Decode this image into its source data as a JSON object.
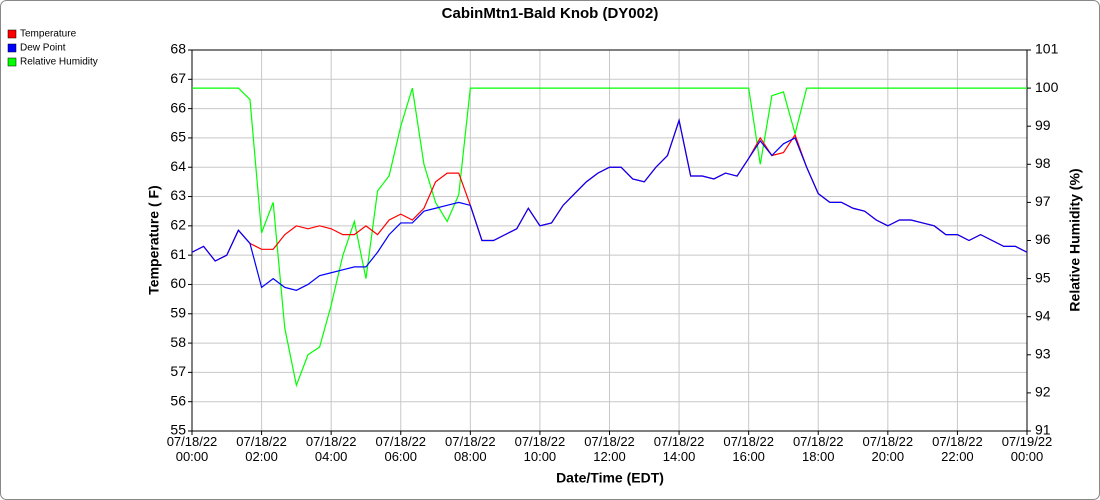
{
  "chart_data": {
    "type": "line",
    "title": "CabinMtn1-Bald Knob (DY002)",
    "x_label": "Date/Time (EDT)",
    "y_label": "Temperature ( F)",
    "y2_label": "Relative Humidity (%)",
    "grid": true,
    "legend_position": "top-left",
    "x": [
      0,
      20,
      40,
      60,
      80,
      100,
      120,
      140,
      160,
      180,
      200,
      220,
      240,
      260,
      280,
      300,
      320,
      340,
      360,
      380,
      400,
      420,
      440,
      460,
      480,
      500,
      520,
      540,
      560,
      580,
      600,
      620,
      640,
      660,
      680,
      700,
      720,
      740,
      760,
      780,
      800,
      820,
      840,
      860,
      880,
      900,
      920,
      940,
      960,
      980,
      1000,
      1020,
      1040,
      1060,
      1080,
      1100,
      1120,
      1140,
      1160,
      1180,
      1200,
      1220,
      1240,
      1260,
      1280,
      1300,
      1320,
      1340,
      1360,
      1380,
      1400,
      1420,
      1440
    ],
    "xlim": [
      0,
      1440
    ],
    "xticks": [
      {
        "value": 0,
        "label": "07/18/22\n00:00"
      },
      {
        "value": 120,
        "label": "07/18/22\n02:00"
      },
      {
        "value": 240,
        "label": "07/18/22\n04:00"
      },
      {
        "value": 360,
        "label": "07/18/22\n06:00"
      },
      {
        "value": 480,
        "label": "07/18/22\n08:00"
      },
      {
        "value": 600,
        "label": "07/18/22\n10:00"
      },
      {
        "value": 720,
        "label": "07/18/22\n12:00"
      },
      {
        "value": 840,
        "label": "07/18/22\n14:00"
      },
      {
        "value": 960,
        "label": "07/18/22\n16:00"
      },
      {
        "value": 1080,
        "label": "07/18/22\n18:00"
      },
      {
        "value": 1200,
        "label": "07/18/22\n20:00"
      },
      {
        "value": 1320,
        "label": "07/18/22\n22:00"
      },
      {
        "value": 1440,
        "label": "07/19/22\n00:00"
      }
    ],
    "ylim": [
      55,
      68
    ],
    "yticks": [
      55,
      56,
      57,
      58,
      59,
      60,
      61,
      62,
      63,
      64,
      65,
      66,
      67,
      68
    ],
    "y2lim": [
      91,
      101
    ],
    "y2ticks": [
      91,
      92,
      93,
      94,
      95,
      96,
      97,
      98,
      99,
      100,
      101
    ],
    "series": [
      {
        "name": "Temperature",
        "color": "#ff0000",
        "values": [
          61.1,
          61.3,
          60.8,
          61.0,
          61.85,
          61.4,
          61.2,
          61.2,
          61.7,
          62.0,
          61.9,
          62.0,
          61.9,
          61.7,
          61.7,
          62.0,
          61.7,
          62.2,
          62.4,
          62.2,
          62.6,
          63.5,
          63.8,
          63.8,
          62.7,
          61.5,
          61.5,
          61.7,
          61.9,
          62.6,
          62.0,
          62.1,
          62.7,
          63.1,
          63.5,
          63.8,
          64.0,
          64.0,
          63.6,
          63.5,
          64.0,
          64.4,
          65.6,
          63.7,
          63.7,
          63.6,
          63.8,
          63.7,
          64.3,
          65.0,
          64.4,
          64.5,
          65.1,
          64.0,
          63.1,
          62.8,
          62.8,
          62.6,
          62.5,
          62.2,
          62.0,
          62.2,
          62.2,
          62.1,
          62.0,
          61.7,
          61.7,
          61.5,
          61.7,
          61.5,
          61.3,
          61.3,
          61.1
        ]
      },
      {
        "name": "Dew Point",
        "color": "#0000ff",
        "values": [
          61.1,
          61.3,
          60.8,
          61.0,
          61.85,
          61.4,
          59.9,
          60.2,
          59.9,
          59.8,
          60.0,
          60.3,
          60.4,
          60.5,
          60.6,
          60.6,
          61.1,
          61.7,
          62.1,
          62.1,
          62.5,
          62.6,
          62.7,
          62.8,
          62.7,
          61.5,
          61.5,
          61.7,
          61.9,
          62.6,
          62.0,
          62.1,
          62.7,
          63.1,
          63.5,
          63.8,
          64.0,
          64.0,
          63.6,
          63.5,
          64.0,
          64.4,
          65.6,
          63.7,
          63.7,
          63.6,
          63.8,
          63.7,
          64.3,
          64.9,
          64.4,
          64.8,
          65.0,
          64.0,
          63.1,
          62.8,
          62.8,
          62.6,
          62.5,
          62.2,
          62.0,
          62.2,
          62.2,
          62.1,
          62.0,
          61.7,
          61.7,
          61.5,
          61.7,
          61.5,
          61.3,
          61.3,
          61.1
        ]
      },
      {
        "name": "Relative Humidity",
        "color": "#00ff00",
        "axis": "y2",
        "values": [
          100,
          100,
          100,
          100,
          100,
          99.7,
          96.2,
          97.0,
          93.7,
          92.2,
          93.0,
          93.2,
          94.3,
          95.6,
          96.5,
          95.0,
          97.3,
          97.7,
          99.0,
          100,
          98.0,
          97.0,
          96.5,
          97.2,
          100,
          100,
          100,
          100,
          100,
          100,
          100,
          100,
          100,
          100,
          100,
          100,
          100,
          100,
          100,
          100,
          100,
          100,
          100,
          100,
          100,
          100,
          100,
          100,
          100,
          98.0,
          99.8,
          99.9,
          98.8,
          100,
          100,
          100,
          100,
          100,
          100,
          100,
          100,
          100,
          100,
          100,
          100,
          100,
          100,
          100,
          100,
          100,
          100,
          100,
          100
        ]
      }
    ]
  }
}
